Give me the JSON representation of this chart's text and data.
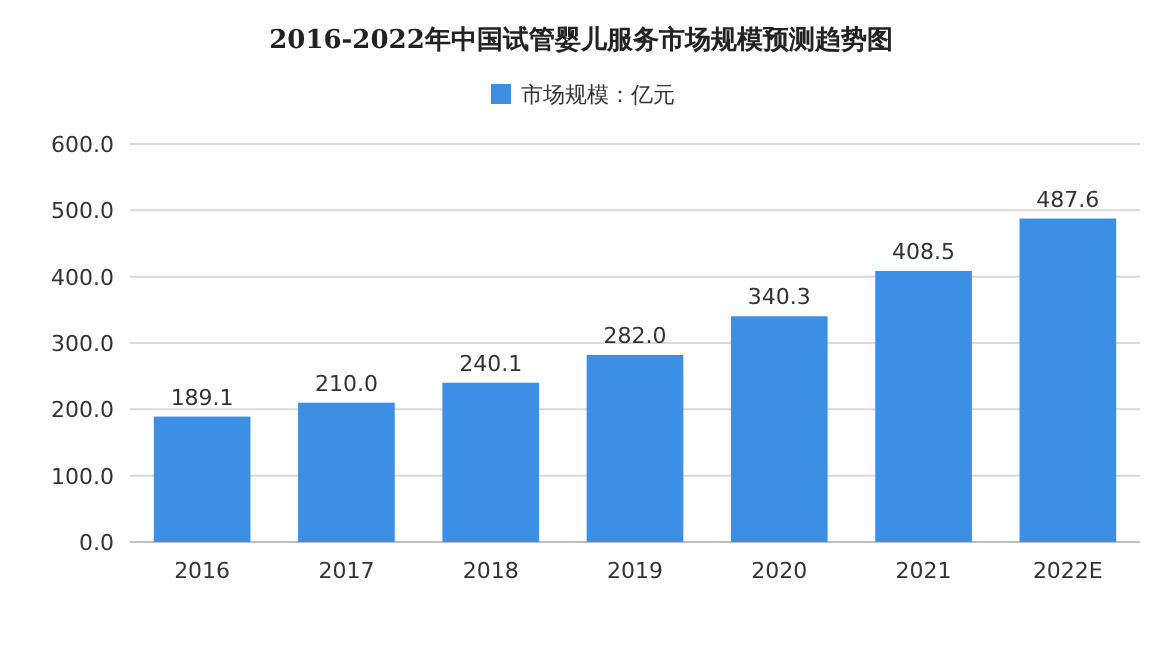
{
  "chart_data": {
    "type": "bar",
    "title": "2016-2022年中国试管婴儿服务市场规模预测趋势图",
    "categories": [
      "2016",
      "2017",
      "2018",
      "2019",
      "2020",
      "2021",
      "2022E"
    ],
    "series": [
      {
        "name": "市场规模：亿元",
        "color": "#3c8fe4",
        "values": [
          189.1,
          210.0,
          240.1,
          282.0,
          340.3,
          408.5,
          487.6
        ]
      }
    ],
    "value_labels": [
      "189.1",
      "210.0",
      "240.1",
      "282.0",
      "340.3",
      "408.5",
      "487.6"
    ],
    "ylim": [
      0,
      600
    ],
    "yticks": [
      {
        "value": 0,
        "label": "0.0"
      },
      {
        "value": 100,
        "label": "100.0"
      },
      {
        "value": 200,
        "label": "200.0"
      },
      {
        "value": 300,
        "label": "300.0"
      },
      {
        "value": 400,
        "label": "400.0"
      },
      {
        "value": 500,
        "label": "500.0"
      },
      {
        "value": 600,
        "label": "600.0"
      }
    ],
    "grid": "y",
    "legend": "top"
  }
}
